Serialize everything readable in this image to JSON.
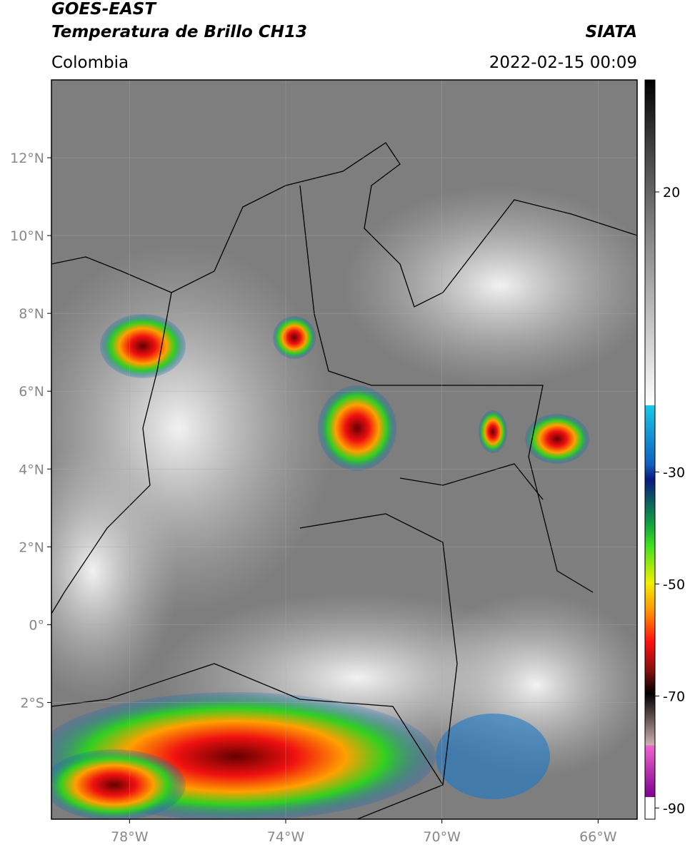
{
  "header": {
    "satellite": "GOES-EAST",
    "product": "Temperatura de Brillo CH13",
    "source": "SIATA",
    "region": "Colombia",
    "datetime": "2022-02-15 00:09"
  },
  "map": {
    "lonlim": [
      -80,
      -65
    ],
    "latlim": [
      -5,
      14
    ],
    "lat_ticks": [
      {
        "value": 12,
        "label": "12°N"
      },
      {
        "value": 10,
        "label": "10°N"
      },
      {
        "value": 8,
        "label": "8°N"
      },
      {
        "value": 6,
        "label": "6°N"
      },
      {
        "value": 4,
        "label": "4°N"
      },
      {
        "value": 2,
        "label": "2°N"
      },
      {
        "value": 0,
        "label": "0°"
      },
      {
        "value": -2,
        "label": "2°S"
      }
    ],
    "lon_ticks": [
      {
        "value": -78,
        "label": "78°W"
      },
      {
        "value": -74,
        "label": "74°W"
      },
      {
        "value": -70,
        "label": "70°W"
      },
      {
        "value": -66,
        "label": "66°W"
      }
    ]
  },
  "colorbar": {
    "lim": [
      -92,
      40
    ],
    "ticks": [
      20,
      -30,
      -50,
      -70,
      -90
    ]
  }
}
